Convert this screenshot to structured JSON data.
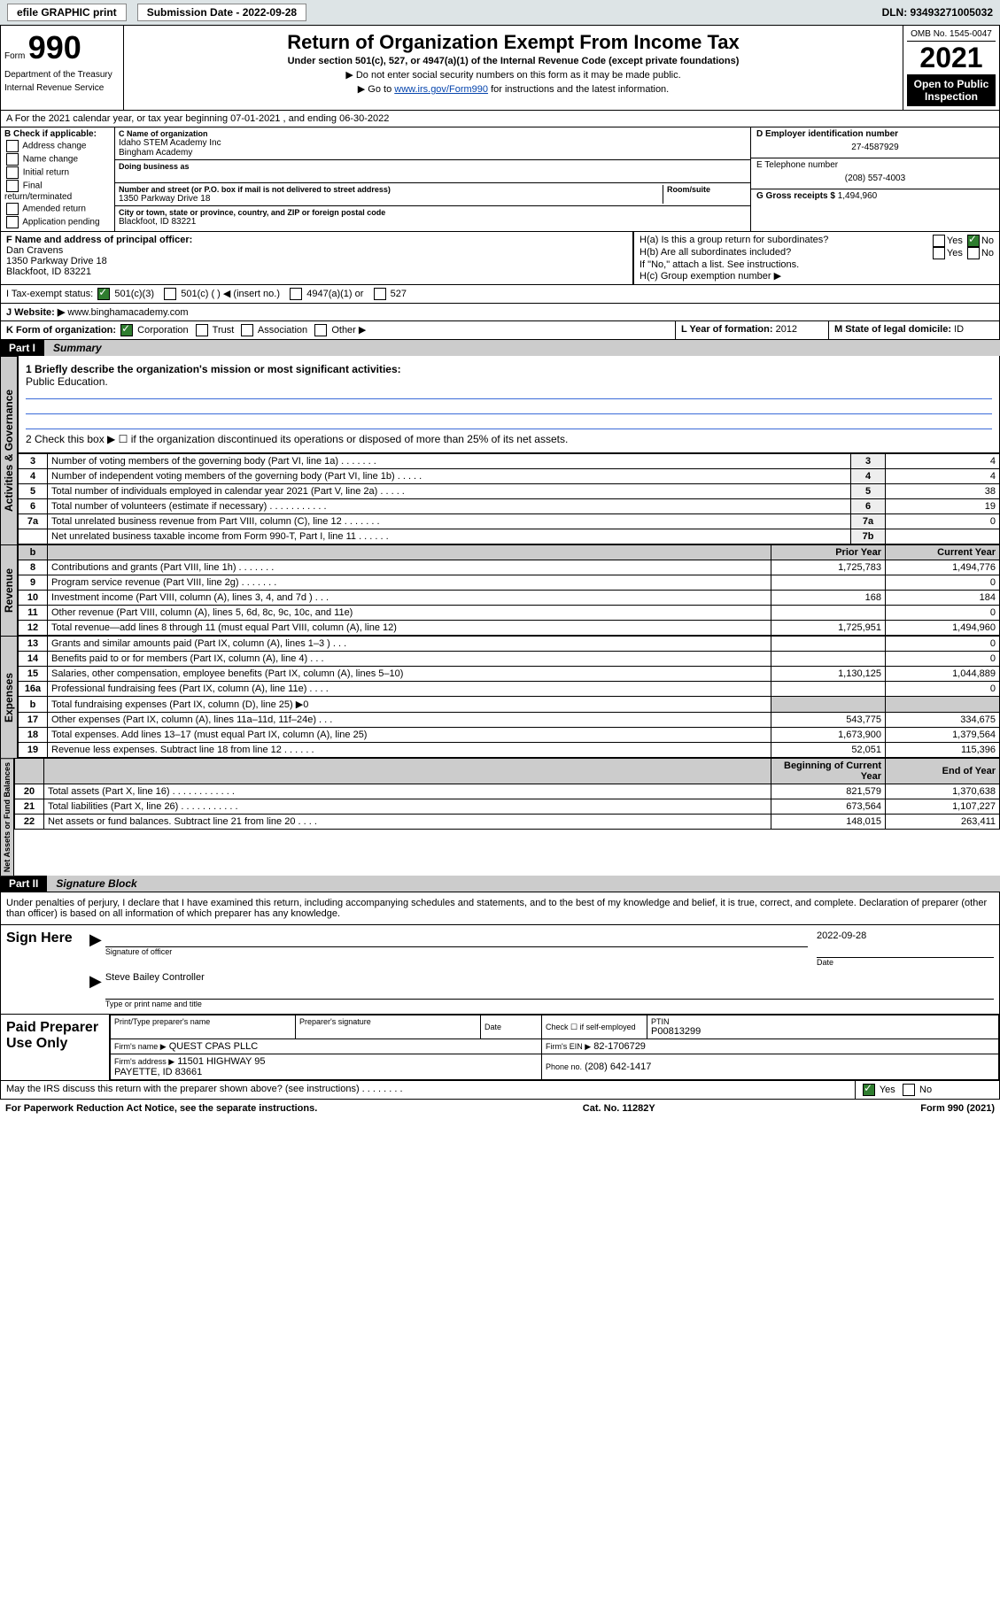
{
  "topbar": {
    "efile_label": "efile GRAPHIC print",
    "submission_label": "Submission Date - 2022-09-28",
    "dln_label": "DLN: 93493271005032"
  },
  "header": {
    "form_word": "Form",
    "form_number": "990",
    "dept": "Department of the Treasury",
    "irs": "Internal Revenue Service",
    "title": "Return of Organization Exempt From Income Tax",
    "subtitle": "Under section 501(c), 527, or 4947(a)(1) of the Internal Revenue Code (except private foundations)",
    "note1": "▶ Do not enter social security numbers on this form as it may be made public.",
    "note2_pre": "▶ Go to ",
    "note2_link": "www.irs.gov/Form990",
    "note2_post": " for instructions and the latest information.",
    "omb": "OMB No. 1545-0047",
    "year": "2021",
    "open": "Open to Public Inspection"
  },
  "section_a": {
    "period": "A For the 2021 calendar year, or tax year beginning 07-01-2021 , and ending 06-30-2022",
    "check_label": "B Check if applicable:",
    "checks": [
      "Address change",
      "Name change",
      "Initial return",
      "Final return/terminated",
      "Amended return",
      "Application pending"
    ],
    "cname_lbl": "C Name of organization",
    "cname1": "Idaho STEM Academy Inc",
    "cname2": "Bingham Academy",
    "dba_lbl": "Doing business as",
    "street_lbl": "Number and street (or P.O. box if mail is not delivered to street address)",
    "street": "1350 Parkway Drive 18",
    "room_lbl": "Room/suite",
    "city_lbl": "City or town, state or province, country, and ZIP or foreign postal code",
    "city": "Blackfoot, ID  83221",
    "ein_lbl": "D Employer identification number",
    "ein": "27-4587929",
    "tel_lbl": "E Telephone number",
    "tel": "(208) 557-4003",
    "gross_lbl": "G Gross receipts $",
    "gross": "1,494,960",
    "officer_lbl": "F Name and address of principal officer:",
    "officer_name": "Dan Cravens",
    "officer_addr1": "1350 Parkway Drive 18",
    "officer_addr2": "Blackfoot, ID  83221",
    "ha_lbl": "H(a) Is this a group return for subordinates?",
    "hb_lbl": "H(b) Are all subordinates included?",
    "hb_note": "If \"No,\" attach a list. See instructions.",
    "hc_lbl": "H(c) Group exemption number ▶",
    "yes": "Yes",
    "no": "No",
    "tax_status_lbl": "I   Tax-exempt status:",
    "t501c3": "501(c)(3)",
    "t501c": "501(c) (  ) ◀ (insert no.)",
    "t4947": "4947(a)(1) or",
    "t527": "527",
    "website_lbl": "J   Website: ▶",
    "website": "www.binghamacademy.com",
    "k_lbl": "K Form of organization:",
    "k_corp": "Corporation",
    "k_trust": "Trust",
    "k_assoc": "Association",
    "k_other": "Other ▶",
    "l_lbl": "L Year of formation:",
    "l_val": "2012",
    "m_lbl": "M State of legal domicile:",
    "m_val": "ID"
  },
  "part1": {
    "tag": "Part I",
    "title": "Summary",
    "q1": "1  Briefly describe the organization's mission or most significant activities:",
    "mission": "Public Education.",
    "q2": "2  Check this box ▶ ☐  if the organization discontinued its operations or disposed of more than 25% of its net assets.",
    "gov_tab": "Activities & Governance",
    "rev_tab": "Revenue",
    "exp_tab": "Expenses",
    "net_tab": "Net Assets or Fund Balances",
    "rows_gov": [
      {
        "n": "3",
        "desc": "Number of voting members of the governing body (Part VI, line 1a)  .    .    .    .    .    .    .",
        "nb": "3",
        "val": "4"
      },
      {
        "n": "4",
        "desc": "Number of independent voting members of the governing body (Part VI, line 1b) .    .    .    .    .",
        "nb": "4",
        "val": "4"
      },
      {
        "n": "5",
        "desc": "Total number of individuals employed in calendar year 2021 (Part V, line 2a)   .    .    .    .    .",
        "nb": "5",
        "val": "38"
      },
      {
        "n": "6",
        "desc": "Total number of volunteers (estimate if necessary)   .     .    .    .    .    .    .    .    .    .    .",
        "nb": "6",
        "val": "19"
      },
      {
        "n": "7a",
        "desc": "Total unrelated business revenue from Part VIII, column (C), line 12  .    .    .    .    .    .    .",
        "nb": "7a",
        "val": "0"
      },
      {
        "n": "",
        "desc": "Net unrelated business taxable income from Form 990-T, Part I, line 11  .    .    .    .    .    .",
        "nb": "7b",
        "val": ""
      }
    ],
    "hdr_b": "b",
    "hdr_prior": "Prior Year",
    "hdr_curr": "Current Year",
    "rows_rev": [
      {
        "n": "8",
        "desc": "Contributions and grants (Part VIII, line 1h)    .    .    .    .    .    .    .",
        "p": "1,725,783",
        "c": "1,494,776"
      },
      {
        "n": "9",
        "desc": "Program service revenue (Part VIII, line 2g)   .    .    .    .    .    .    .",
        "p": "",
        "c": "0"
      },
      {
        "n": "10",
        "desc": "Investment income (Part VIII, column (A), lines 3, 4, and 7d )   .    .    .",
        "p": "168",
        "c": "184"
      },
      {
        "n": "11",
        "desc": "Other revenue (Part VIII, column (A), lines 5, 6d, 8c, 9c, 10c, and 11e)",
        "p": "",
        "c": "0"
      },
      {
        "n": "12",
        "desc": "Total revenue—add lines 8 through 11 (must equal Part VIII, column (A), line 12)",
        "p": "1,725,951",
        "c": "1,494,960"
      }
    ],
    "rows_exp": [
      {
        "n": "13",
        "desc": "Grants and similar amounts paid (Part IX, column (A), lines 1–3 )   .    .    .",
        "p": "",
        "c": "0"
      },
      {
        "n": "14",
        "desc": "Benefits paid to or for members (Part IX, column (A), line 4)  .    .    .",
        "p": "",
        "c": "0"
      },
      {
        "n": "15",
        "desc": "Salaries, other compensation, employee benefits (Part IX, column (A), lines 5–10)",
        "p": "1,130,125",
        "c": "1,044,889"
      },
      {
        "n": "16a",
        "desc": "Professional fundraising fees (Part IX, column (A), line 11e)   .    .    .    .",
        "p": "",
        "c": "0"
      },
      {
        "n": "b",
        "desc": "Total fundraising expenses (Part IX, column (D), line 25) ▶0",
        "p": "GREY",
        "c": "GREY"
      },
      {
        "n": "17",
        "desc": "Other expenses (Part IX, column (A), lines 11a–11d, 11f–24e)  .    .    .",
        "p": "543,775",
        "c": "334,675"
      },
      {
        "n": "18",
        "desc": "Total expenses. Add lines 13–17 (must equal Part IX, column (A), line 25)",
        "p": "1,673,900",
        "c": "1,379,564"
      },
      {
        "n": "19",
        "desc": "Revenue less expenses. Subtract line 18 from line 12  .    .    .    .    .    .",
        "p": "52,051",
        "c": "115,396"
      }
    ],
    "hdr_begin": "Beginning of Current Year",
    "hdr_end": "End of Year",
    "rows_net": [
      {
        "n": "20",
        "desc": "Total assets (Part X, line 16)  .    .    .    .    .    .    .    .    .    .    .    .",
        "p": "821,579",
        "c": "1,370,638"
      },
      {
        "n": "21",
        "desc": "Total liabilities (Part X, line 26)  .    .    .    .    .    .    .    .    .    .    .",
        "p": "673,564",
        "c": "1,107,227"
      },
      {
        "n": "22",
        "desc": "Net assets or fund balances. Subtract line 21 from line 20  .    .    .    .",
        "p": "148,015",
        "c": "263,411"
      }
    ]
  },
  "part2": {
    "tag": "Part II",
    "title": "Signature Block",
    "penalty": "Under penalties of perjury, I declare that I have examined this return, including accompanying schedules and statements, and to the best of my knowledge and belief, it is true, correct, and complete. Declaration of preparer (other than officer) is based on all information of which preparer has any knowledge.",
    "sign_here": "Sign Here",
    "sig_officer": "Signature of officer",
    "sig_date": "2022-09-28",
    "date_lbl": "Date",
    "officer_typed": "Steve Bailey Controller",
    "type_name_lbl": "Type or print name and title",
    "paid_label": "Paid Preparer Use Only",
    "prep_name_lbl": "Print/Type preparer's name",
    "prep_sig_lbl": "Preparer's signature",
    "prep_date_lbl": "Date",
    "check_self": "Check ☐ if self-employed",
    "ptin_lbl": "PTIN",
    "ptin": "P00813299",
    "firm_name_lbl": "Firm's name    ▶",
    "firm_name": "QUEST CPAS PLLC",
    "firm_ein_lbl": "Firm's EIN ▶",
    "firm_ein": "82-1706729",
    "firm_addr_lbl": "Firm's address ▶",
    "firm_addr1": "11501 HIGHWAY 95",
    "firm_addr2": "PAYETTE, ID  83661",
    "phone_lbl": "Phone no.",
    "phone": "(208) 642-1417",
    "discuss": "May the IRS discuss this return with the preparer shown above? (see instructions)   .    .    .    .    .    .    .    ."
  },
  "footer": {
    "pra": "For Paperwork Reduction Act Notice, see the separate instructions.",
    "cat": "Cat. No. 11282Y",
    "form": "Form 990 (2021)"
  }
}
